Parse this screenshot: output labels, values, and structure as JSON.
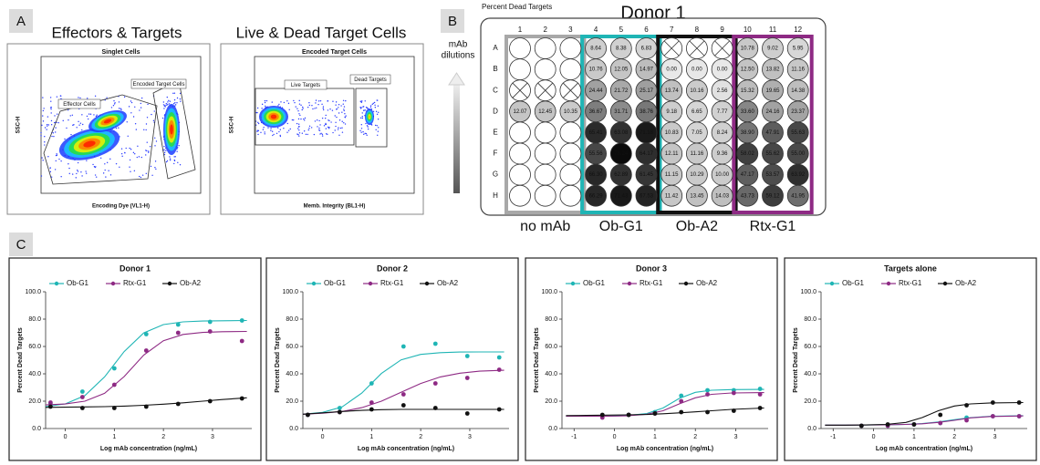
{
  "panel_labels": [
    "A",
    "B",
    "C"
  ],
  "flow": [
    {
      "heading": "Effectors & Targets",
      "plot_title": "Singlet Cells",
      "gates": [
        "Effector Cells",
        "Encoded Target Cells"
      ],
      "y_label": "SSC-H",
      "x_label": "Encoding Dye (VL1-H)"
    },
    {
      "heading": "Live & Dead Target Cells",
      "plot_title": "Encoded Target Cells",
      "gates": [
        "Live Targets",
        "Dead Targets"
      ],
      "y_label": "SSC-H",
      "x_label": "Memb. Integrity (BL1-H)"
    }
  ],
  "plate": {
    "caption": "Percent Dead Targets",
    "title": "Donor 1",
    "side_label": [
      "mAb",
      "dilutions"
    ],
    "columns": [
      1,
      2,
      3,
      4,
      5,
      6,
      7,
      8,
      9,
      10,
      11,
      12
    ],
    "rows": [
      "A",
      "B",
      "C",
      "D",
      "E",
      "F",
      "G",
      "H"
    ],
    "values": [
      [
        null,
        null,
        null,
        "8.64",
        "8.38",
        "6.83",
        null,
        null,
        null,
        "10.78",
        "9.02",
        "5.95"
      ],
      [
        null,
        null,
        null,
        "10.76",
        "12.05",
        "14.97",
        "0.00",
        "0.00",
        "0.00",
        "12.50",
        "13.82",
        "11.16"
      ],
      [
        null,
        null,
        null,
        "24.44",
        "21.72",
        "25.17",
        "13.74",
        "10.16",
        "2.56",
        "15.32",
        "19.65",
        "14.38"
      ],
      [
        "12.07",
        "12.45",
        "10.35",
        "36.67",
        "31.71",
        "38.76",
        "9.18",
        "6.65",
        "7.77",
        "33.60",
        "24.16",
        "23.37"
      ],
      [
        null,
        null,
        null,
        "65.41",
        "63.08",
        "71.18",
        "10.83",
        "7.05",
        "8.24",
        "38.90",
        "47.91",
        "55.63"
      ],
      [
        null,
        null,
        null,
        "55.56",
        "76.24",
        "64.17",
        "12.11",
        "11.16",
        "9.36",
        "58.02",
        "55.62",
        "55.00"
      ],
      [
        null,
        null,
        null,
        "66.30",
        "62.89",
        "61.45",
        "11.15",
        "10.29",
        "10.00",
        "47.17",
        "53.57",
        "63.92"
      ],
      [
        null,
        null,
        null,
        "66.29",
        "71.43",
        "67.53",
        "11.42",
        "13.45",
        "14.03",
        "43.73",
        "59.12",
        "41.95"
      ]
    ],
    "crossed_wells": [
      "A7",
      "A8",
      "A9",
      "C1",
      "C2",
      "C3"
    ],
    "groups": [
      {
        "name": "no mAb",
        "color": "#a8a8a8"
      },
      {
        "name": "Ob-G1",
        "color": "#1fb5b5"
      },
      {
        "name": "Ob-A2",
        "color": "#111111"
      },
      {
        "name": "Rtx-G1",
        "color": "#8e2a84"
      }
    ]
  },
  "chart_data": [
    {
      "type": "line",
      "title": "Donor 1",
      "x_label": "Log mAb concentration (ng/mL)",
      "y_label": "Percent Dead Targets",
      "x": [
        -0.3,
        0.35,
        1.0,
        1.65,
        2.3,
        2.95,
        3.6
      ],
      "fit_x": [
        -0.4,
        0,
        0.4,
        0.8,
        1.2,
        1.6,
        2.0,
        2.4,
        2.8,
        3.2,
        3.7
      ],
      "xlim": [
        -0.4,
        3.8
      ],
      "xticks": [
        0,
        1,
        2,
        3
      ],
      "ylim": [
        0,
        100
      ],
      "yticks": [
        {
          "value": 0,
          "label": "0.0"
        },
        {
          "value": 20,
          "label": "20.0"
        },
        {
          "value": 40,
          "label": "40.0"
        },
        {
          "value": 60,
          "label": "60.0"
        },
        {
          "value": 80,
          "label": "80.0"
        },
        {
          "value": 100,
          "label": "100.0"
        }
      ],
      "series": [
        {
          "name": "Ob-G1",
          "color": "#1fb5b5",
          "values": [
            18,
            27,
            44,
            69,
            76,
            78,
            79
          ],
          "fit": [
            16.0,
            18.0,
            24.1,
            37.7,
            56.3,
            69.9,
            76,
            78.0,
            78.6,
            78.8,
            79.0
          ]
        },
        {
          "name": "Rtx-G1",
          "color": "#8e2a84",
          "values": [
            19,
            23,
            32,
            57,
            70,
            71,
            64
          ],
          "fit": [
            17.3,
            17.9,
            20.0,
            25.7,
            38.0,
            53.7,
            64.2,
            68.8,
            70.3,
            70.8,
            71.0
          ]
        },
        {
          "name": "Ob-A2",
          "color": "#111111",
          "values": [
            16,
            15,
            15,
            16,
            18,
            20,
            22
          ],
          "fit": [
            15.5,
            15.6,
            15.8,
            16,
            16.4,
            17,
            17.8,
            18.8,
            20,
            21.2,
            22.5
          ]
        }
      ]
    },
    {
      "type": "line",
      "title": "Donor 2",
      "x_label": "Log mAb concentration (ng/mL)",
      "y_label": "Percent Dead Targets",
      "x": [
        -0.3,
        0.35,
        1.0,
        1.65,
        2.3,
        2.95,
        3.6
      ],
      "fit_x": [
        -0.4,
        0,
        0.4,
        0.8,
        1.2,
        1.6,
        2.0,
        2.4,
        2.8,
        3.2,
        3.7
      ],
      "xlim": [
        -0.4,
        3.8
      ],
      "xticks": [
        0,
        1,
        2,
        3
      ],
      "ylim": [
        0,
        100
      ],
      "yticks": [
        {
          "value": 0,
          "label": "0.0"
        },
        {
          "value": 20,
          "label": "20.0"
        },
        {
          "value": 40,
          "label": "40.0"
        },
        {
          "value": 60,
          "label": "60.0"
        },
        {
          "value": 80,
          "label": "80.0"
        },
        {
          "value": 100,
          "label": "100.0"
        }
      ],
      "series": [
        {
          "name": "Ob-G1",
          "color": "#1fb5b5",
          "values": [
            10,
            15,
            33,
            60,
            62,
            53,
            52
          ],
          "fit": [
            10.5,
            11.8,
            15.8,
            25.9,
            40.3,
            50.2,
            54.2,
            55.5,
            55.9,
            56,
            56
          ]
        },
        {
          "name": "Rtx-G1",
          "color": "#8e2a84",
          "values": [
            10,
            12,
            19,
            25,
            33,
            37,
            43
          ],
          "fit": [
            10.5,
            11.2,
            12.5,
            15.3,
            20.0,
            26.5,
            32.9,
            37.7,
            40.5,
            41.9,
            42.6
          ]
        },
        {
          "name": "Ob-A2",
          "color": "#111111",
          "values": [
            10,
            12,
            14,
            17,
            15,
            11,
            14
          ],
          "fit": [
            10.5,
            11.5,
            12.5,
            13.3,
            13.8,
            14,
            14,
            14,
            14,
            14,
            14
          ]
        }
      ]
    },
    {
      "type": "line",
      "title": "Donor 3",
      "x_label": "Log mAb concentration (ng/mL)",
      "y_label": "Percent Dead Targets",
      "x": [
        -0.3,
        0.35,
        1.0,
        1.65,
        2.3,
        2.95,
        3.6
      ],
      "fit_x": [
        -1.2,
        -0.7,
        -0.2,
        0.3,
        0.8,
        1.2,
        1.6,
        2.0,
        2.4,
        2.9,
        3.7
      ],
      "xlim": [
        -1.3,
        3.8
      ],
      "xticks": [
        -1,
        0,
        1,
        2,
        3
      ],
      "ylim": [
        0,
        100
      ],
      "yticks": [
        {
          "value": 0,
          "label": "0.0"
        },
        {
          "value": 20,
          "label": "20.0"
        },
        {
          "value": 40,
          "label": "40.0"
        },
        {
          "value": 60,
          "label": "60.0"
        },
        {
          "value": 80,
          "label": "80.0"
        },
        {
          "value": 100,
          "label": "100.0"
        }
      ],
      "series": [
        {
          "name": "Ob-G1",
          "color": "#1fb5b5",
          "values": [
            9,
            10,
            12,
            24,
            28,
            28,
            29
          ],
          "fit": [
            9,
            9,
            9,
            9.5,
            11,
            15,
            22,
            26.5,
            28,
            28.5,
            28.6
          ]
        },
        {
          "name": "Rtx-G1",
          "color": "#8e2a84",
          "values": [
            8,
            10,
            11,
            20,
            25,
            26,
            25
          ],
          "fit": [
            9,
            9,
            9,
            9.3,
            10.5,
            13,
            18,
            22.5,
            25,
            26,
            26.3
          ]
        },
        {
          "name": "Ob-A2",
          "color": "#111111",
          "values": [
            10,
            10,
            11,
            12,
            12,
            13,
            15
          ],
          "fit": [
            9.5,
            9.6,
            9.8,
            10,
            10.3,
            10.8,
            11.5,
            12.2,
            13,
            14,
            15
          ]
        }
      ]
    },
    {
      "type": "line",
      "title": "Targets alone",
      "x_label": "Log mAb concentration (ng/mL)",
      "y_label": "Percent Dead Targets",
      "x": [
        -0.3,
        0.35,
        1.0,
        1.65,
        2.3,
        2.95,
        3.6
      ],
      "fit_x": [
        -1.2,
        -0.7,
        -0.2,
        0.3,
        0.8,
        1.2,
        1.6,
        2.0,
        2.4,
        2.9,
        3.7
      ],
      "xlim": [
        -1.3,
        3.8
      ],
      "xticks": [
        -1,
        0,
        1,
        2,
        3
      ],
      "ylim": [
        0,
        100
      ],
      "yticks": [
        {
          "value": 0,
          "label": "0.0"
        },
        {
          "value": 20,
          "label": "20.0"
        },
        {
          "value": 40,
          "label": "40.0"
        },
        {
          "value": 60,
          "label": "60.0"
        },
        {
          "value": 80,
          "label": "80.0"
        },
        {
          "value": 100,
          "label": "100.0"
        }
      ],
      "series": [
        {
          "name": "Ob-G1",
          "color": "#1fb5b5",
          "values": [
            2,
            2,
            3,
            4,
            8,
            9,
            9
          ],
          "fit": [
            2.5,
            2.5,
            2.6,
            2.7,
            3,
            3.6,
            4.8,
            6.5,
            8,
            9,
            9.4
          ]
        },
        {
          "name": "Rtx-G1",
          "color": "#8e2a84",
          "values": [
            2,
            2,
            3,
            4,
            6,
            9,
            9
          ],
          "fit": [
            2.5,
            2.5,
            2.6,
            2.7,
            3,
            3.5,
            4.5,
            6,
            7.8,
            8.8,
            9.2
          ]
        },
        {
          "name": "Ob-A2",
          "color": "#111111",
          "values": [
            2,
            3,
            3,
            10,
            17,
            19,
            19
          ],
          "fit": [
            2.5,
            2.5,
            2.6,
            3,
            4.5,
            8,
            13,
            16.5,
            18,
            18.7,
            19
          ]
        }
      ]
    }
  ]
}
